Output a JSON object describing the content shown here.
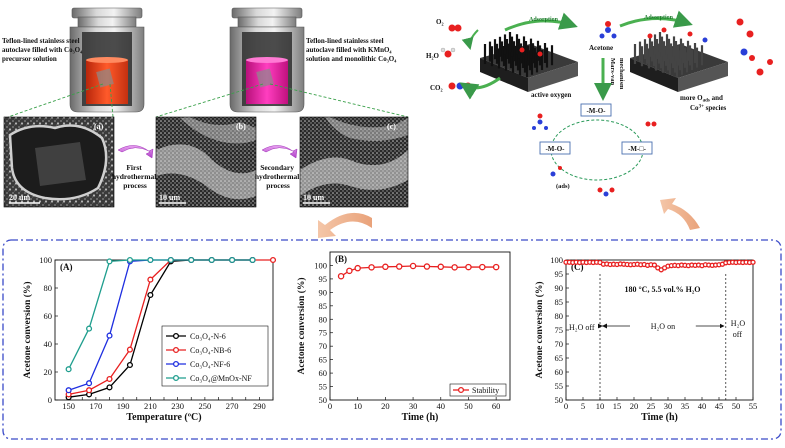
{
  "top_left": {
    "autoclave1_label": [
      "Teflon-lined stainless steel",
      "autoclave filled with Co₃O₄",
      "precursor solution"
    ],
    "autoclave2_label": [
      "Teflon-lined stainless steel",
      "autoclave filled with KMnO₄",
      "solution and monolithic Co₃O₄"
    ],
    "sem_panels": [
      {
        "letter": "(a)",
        "scale": "20 um"
      },
      {
        "letter": "(b)",
        "scale": "10 um"
      },
      {
        "letter": "(c)",
        "scale": "10 um"
      }
    ],
    "process1": [
      "First",
      "hydrothermal",
      "process"
    ],
    "process2": [
      "Secondary",
      "hydrothermal",
      "process"
    ]
  },
  "top_right": {
    "o2": "O₂",
    "h2o": "H₂O",
    "co2": "CO₂",
    "adsorption1": "Adsorption",
    "adsorption2": "Adsorption",
    "acetone": "Acetone",
    "mechanism": [
      "mechanism",
      "Mars-van"
    ],
    "active_oxygen": "active oxygen",
    "more_oads": [
      "more O",
      "ads",
      " and"
    ],
    "co_species": [
      "Co",
      "3+",
      " species"
    ],
    "cycle_nodes": [
      "-M-O-",
      "-M-O-",
      "-M-□-"
    ],
    "ads": "(ads)"
  },
  "chart_data": [
    {
      "type": "line",
      "panel": "(A)",
      "xlabel": "Temperature (ºC)",
      "ylabel": "Acetone conversion (%)",
      "xlim": [
        140,
        300
      ],
      "ylim": [
        0,
        100
      ],
      "xticks": [
        150,
        160,
        170,
        180,
        190,
        200,
        210,
        220,
        230,
        240,
        250,
        260,
        270,
        280,
        290,
        300
      ],
      "yticks": [
        0,
        20,
        40,
        60,
        80,
        100
      ],
      "series": [
        {
          "name": "Co₃O₄-N-6",
          "color": "#000000",
          "x": [
            150,
            165,
            180,
            195,
            210,
            225,
            240,
            255,
            270,
            285
          ],
          "values": [
            2,
            4,
            9,
            25,
            75,
            99,
            100,
            100,
            100,
            100
          ]
        },
        {
          "name": "Co₃O₄-NB-6",
          "color": "#e82020",
          "x": [
            150,
            165,
            180,
            195,
            210,
            225,
            240,
            255,
            270,
            285,
            300
          ],
          "values": [
            4,
            7,
            15,
            36,
            86,
            100,
            100,
            100,
            100,
            100,
            100
          ]
        },
        {
          "name": "Co₃O₄-NF-6",
          "color": "#1f2fe0",
          "x": [
            150,
            165,
            180,
            195,
            210,
            225,
            240,
            255,
            270,
            285
          ],
          "values": [
            7,
            12,
            46,
            99,
            100,
            100,
            100,
            100,
            100,
            100
          ]
        },
        {
          "name": "Co₃O₄@MnOx-NF",
          "color": "#1f9e8e",
          "x": [
            150,
            165,
            180,
            195,
            210,
            225,
            240,
            255,
            270,
            285
          ],
          "values": [
            22,
            51,
            99,
            100,
            100,
            100,
            100,
            100,
            100,
            100
          ]
        }
      ],
      "legend_text": [
        "Co₃O₄-N-6",
        "Co₃O₄-NB-6",
        "Co₃O₄-NF-6",
        "Co₃O₄@MnOx-NF"
      ]
    },
    {
      "type": "line",
      "panel": "(B)",
      "xlabel": "Time (h)",
      "ylabel": "Acetone conversion (%)",
      "xlim": [
        0,
        65
      ],
      "ylim": [
        50,
        105
      ],
      "xticks": [
        0,
        10,
        20,
        30,
        40,
        50,
        60
      ],
      "yticks": [
        50,
        55,
        60,
        65,
        70,
        75,
        80,
        85,
        90,
        95,
        100
      ],
      "series": [
        {
          "name": "Stability",
          "color": "#e82020",
          "x": [
            4,
            7,
            10,
            15,
            20,
            25,
            30,
            35,
            40,
            45,
            50,
            55,
            60
          ],
          "values": [
            96,
            98,
            99,
            99.3,
            99.5,
            99.6,
            99.8,
            99.6,
            99.5,
            99.3,
            99.4,
            99.4,
            99.4
          ]
        }
      ],
      "legend_text": [
        "Stability"
      ]
    },
    {
      "type": "line",
      "panel": "(C)",
      "xlabel": "Time (h)",
      "ylabel": "Acetone conversion (%)",
      "xlim": [
        0,
        55
      ],
      "ylim": [
        50,
        100
      ],
      "xticks": [
        0,
        5,
        10,
        15,
        20,
        25,
        30,
        35,
        40,
        45,
        50,
        55
      ],
      "yticks": [
        50,
        55,
        60,
        65,
        70,
        75,
        80,
        85,
        90,
        95,
        100
      ],
      "series": [
        {
          "name": "conversion",
          "color": "#e82020",
          "x": [
            0,
            1,
            2,
            3,
            4,
            5,
            6,
            7,
            8,
            9,
            10,
            11,
            12,
            13,
            14,
            15,
            16,
            17,
            18,
            19,
            20,
            21,
            22,
            23,
            24,
            25,
            26,
            27,
            28,
            29,
            30,
            31,
            32,
            33,
            34,
            35,
            36,
            37,
            38,
            39,
            40,
            41,
            42,
            43,
            44,
            45,
            46,
            47,
            48,
            49,
            50,
            51,
            52,
            53,
            54,
            55
          ],
          "values": [
            99.2,
            99.2,
            99.1,
            99.2,
            99.1,
            99.2,
            99.1,
            99.2,
            99.1,
            99.2,
            99.1,
            98.5,
            98.6,
            98.4,
            98.5,
            98.4,
            98.6,
            98.5,
            98.4,
            98.3,
            98.4,
            98.5,
            98.3,
            98.4,
            98.1,
            98.3,
            98.2,
            97.2,
            96.5,
            97.2,
            97.8,
            98.0,
            98.1,
            98.0,
            98.2,
            98.1,
            98.0,
            98.2,
            98.1,
            98.2,
            98.0,
            98.3,
            98.2,
            98.1,
            98.2,
            98.3,
            98.5,
            99.0,
            99.1,
            99.2,
            99.1,
            99.2,
            99.1,
            99.2,
            99.1,
            99.2
          ]
        }
      ],
      "annotations": {
        "condition": "180 °C, 5.5 vol.% H₂O",
        "h2o_off_left": "H₂O off",
        "h2o_on": "H₂O on",
        "h2o_off_right": [
          "H₂O",
          "off"
        ],
        "dividers_x": [
          10,
          47
        ]
      }
    }
  ]
}
